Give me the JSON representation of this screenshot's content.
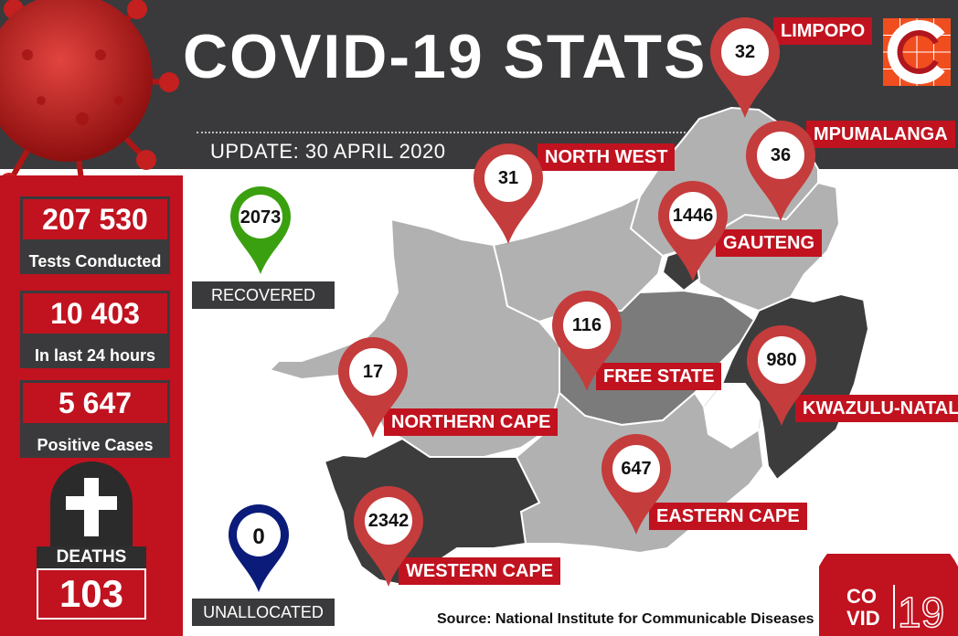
{
  "title": "COVID-19 STATS",
  "update": "UPDATE: 30 APRIL 2020",
  "stats": [
    {
      "value": "207 530",
      "label": "Tests Conducted"
    },
    {
      "value": "10 403",
      "label": "In last 24 hours"
    },
    {
      "value": "5 647",
      "label": "Positive Cases"
    }
  ],
  "deaths": {
    "label": "DEATHS",
    "value": "103"
  },
  "recovered": {
    "value": "2073",
    "label": "RECOVERED"
  },
  "unallocated": {
    "value": "0",
    "label": "UNALLOCATED"
  },
  "provinces": [
    {
      "name": "LIMPOPO",
      "value": "32"
    },
    {
      "name": "MPUMALANGA",
      "value": "36"
    },
    {
      "name": "NORTH WEST",
      "value": "31"
    },
    {
      "name": "GAUTENG",
      "value": "1446"
    },
    {
      "name": "FREE STATE",
      "value": "116"
    },
    {
      "name": "KWAZULU-NATAL",
      "value": "980"
    },
    {
      "name": "NORTHERN CAPE",
      "value": "17"
    },
    {
      "name": "EASTERN CAPE",
      "value": "647"
    },
    {
      "name": "WESTERN CAPE",
      "value": "2342"
    }
  ],
  "source": "Source: National Institute for Communicable Diseases",
  "badge": {
    "line1": "CO",
    "line2": "VID",
    "numeral": "19"
  },
  "colors": {
    "header": "#3a3a3c",
    "accent": "#c1121f",
    "recovered": "#3aa00f",
    "unallocated": "#0b1b7a",
    "region_dark": "#3c3c3c",
    "region_mid": "#7b7b7b",
    "region_light": "#b1b1b1"
  }
}
